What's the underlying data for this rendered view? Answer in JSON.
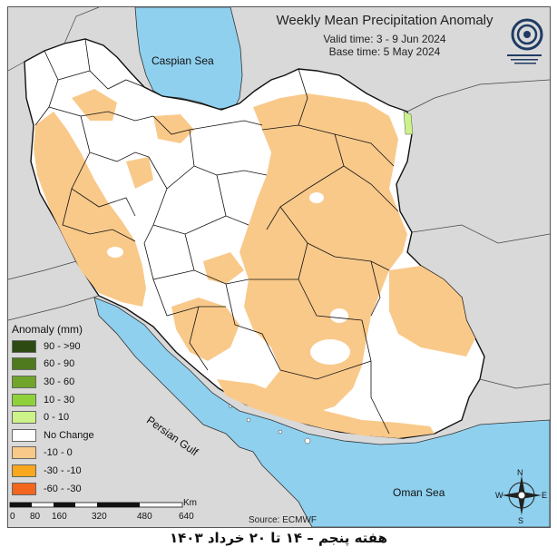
{
  "title": "Weekly Mean Precipitation Anomaly",
  "valid_time": "Valid time: 3 - 9 Jun 2024",
  "base_time": "Base time: 5 May 2024",
  "legend": {
    "title": "Anomaly (mm)",
    "items": [
      {
        "label": "90 - >90",
        "color": "#2d4a12"
      },
      {
        "label": "60 - 90",
        "color": "#4f7a1d"
      },
      {
        "label": "30 - 60",
        "color": "#6ea52a"
      },
      {
        "label": "10 - 30",
        "color": "#8fd13a"
      },
      {
        "label": "0 - 10",
        "color": "#ccf28a"
      },
      {
        "label": "No Change",
        "color": "#ffffff"
      },
      {
        "label": "-10 - 0",
        "color": "#f9c98a"
      },
      {
        "label": "-30 - -10",
        "color": "#f9a71e"
      },
      {
        "label": "-60 - -30",
        "color": "#f2661d"
      }
    ]
  },
  "scale": {
    "unit": "Km",
    "ticks": [
      "0",
      "80",
      "160",
      "320",
      "480",
      "640"
    ]
  },
  "source": "Source: ECMWF",
  "seas": {
    "caspian": "Caspian Sea",
    "persian": "Persian Gulf",
    "oman": "Oman Sea"
  },
  "compass": {
    "n": "N",
    "s": "S",
    "e": "E",
    "w": "W"
  },
  "caption": "هفته پنجم – ۱۴ تا ۲۰ خرداد ۱۴۰۳",
  "colors": {
    "sea": "#8fd0ee",
    "land_outside": "#d9d9d9",
    "iran": "#ffffff",
    "dry": "#f9c98a",
    "wet": "#ccf28a"
  }
}
